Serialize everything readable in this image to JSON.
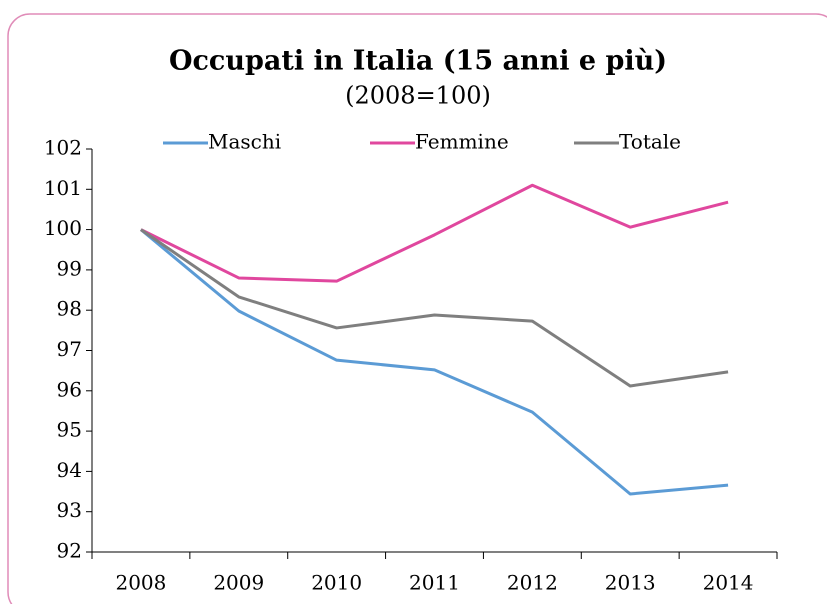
{
  "chart_data": {
    "type": "line",
    "title": "Occupati in Italia (15 anni e più)",
    "subtitle": "(2008=100)",
    "categories": [
      "2008",
      "2009",
      "2010",
      "2011",
      "2012",
      "2013",
      "2014"
    ],
    "series": [
      {
        "name": "Maschi",
        "color": "#5b9bd5",
        "values": [
          100,
          97.98,
          96.76,
          96.52,
          95.47,
          93.44,
          93.66
        ]
      },
      {
        "name": "Femmine",
        "color": "#e0479e",
        "values": [
          100,
          98.8,
          98.72,
          99.87,
          101.1,
          100.06,
          100.68
        ]
      },
      {
        "name": "Totale",
        "color": "#7f7f7f",
        "values": [
          100,
          98.33,
          97.56,
          97.88,
          97.73,
          96.12,
          96.47
        ]
      }
    ],
    "ylim": [
      92,
      102
    ],
    "yticks": [
      92,
      93,
      94,
      95,
      96,
      97,
      98,
      99,
      100,
      101,
      102
    ],
    "grid": false,
    "legend": "top"
  }
}
